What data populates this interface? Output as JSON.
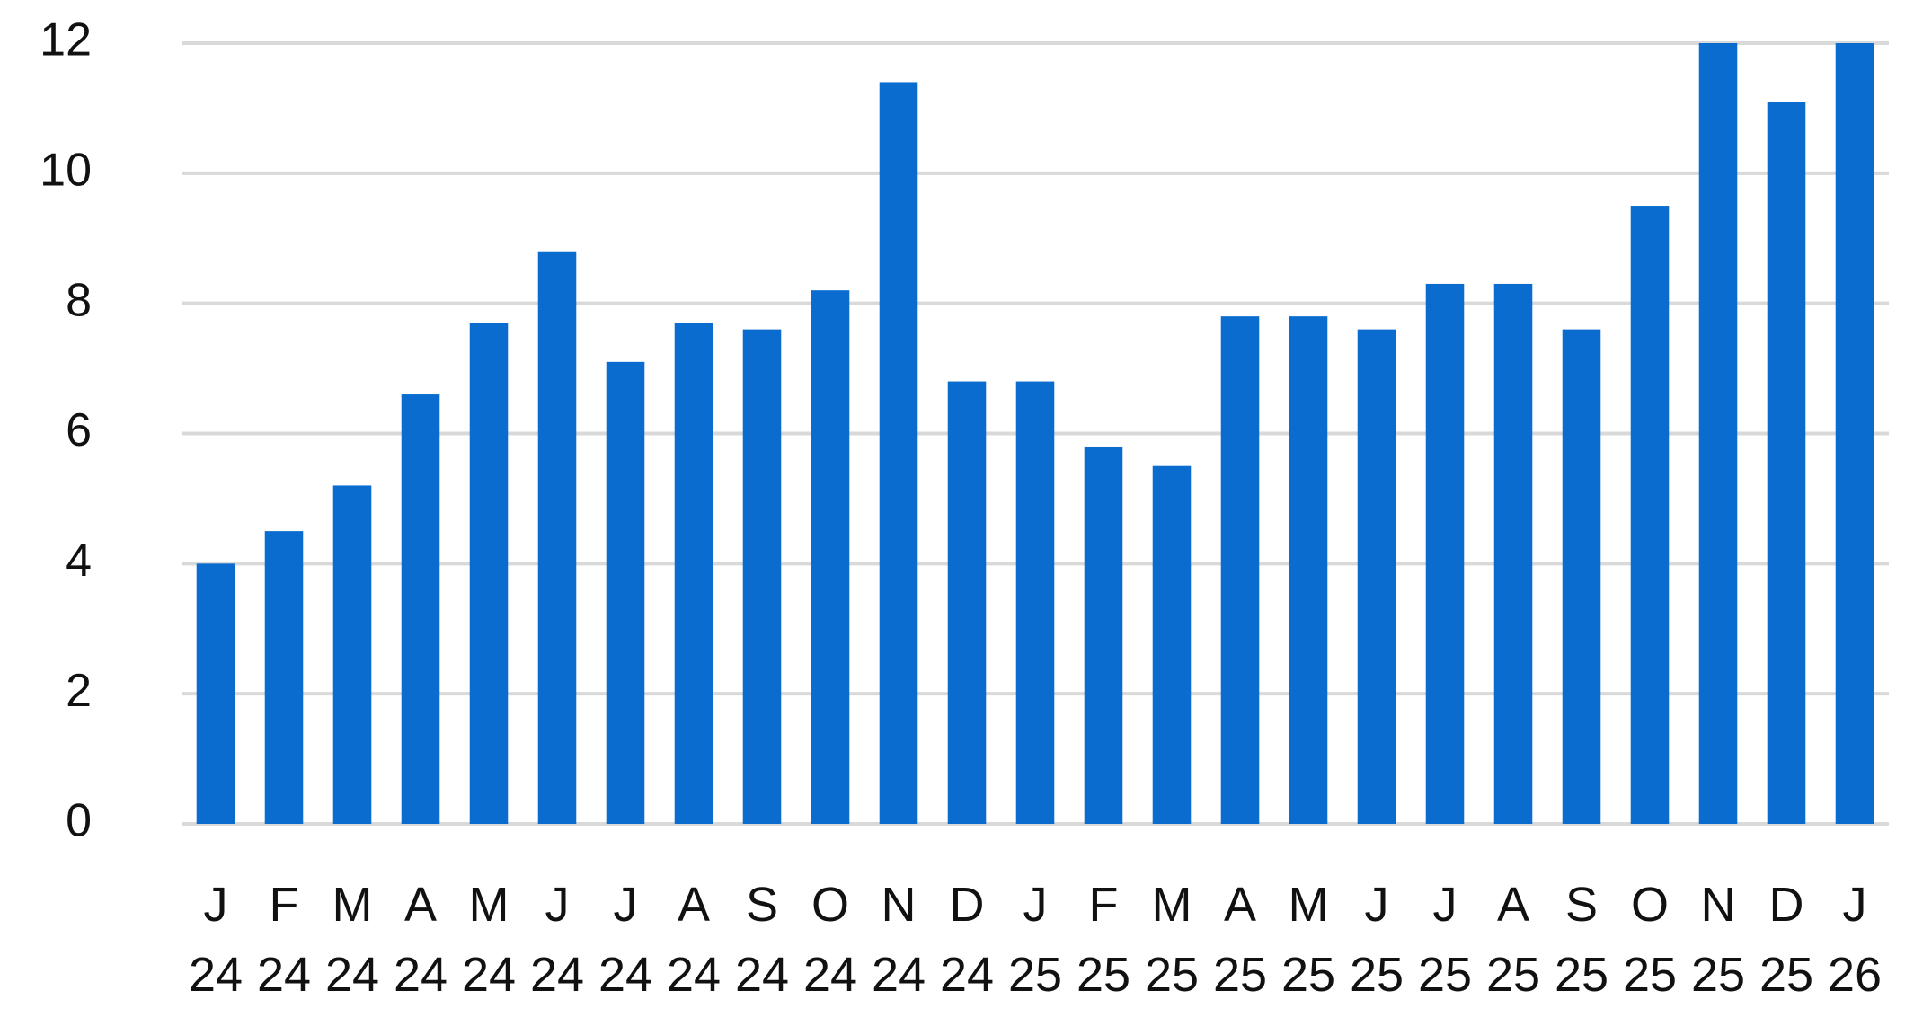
{
  "chart_data": {
    "type": "bar",
    "categories": [
      "J 24",
      "F 24",
      "M 24",
      "A 24",
      "M 24",
      "J 24",
      "J 24",
      "A 24",
      "S 24",
      "O 24",
      "N 24",
      "D 24",
      "J 25",
      "F 25",
      "M 25",
      "A 25",
      "M 25",
      "J 25",
      "J 25",
      "A 25",
      "S 25",
      "O 25",
      "N 25",
      "D 25",
      "J 26"
    ],
    "values": [
      4.0,
      4.5,
      5.2,
      6.6,
      7.7,
      8.8,
      7.1,
      7.7,
      7.6,
      8.2,
      11.4,
      6.8,
      6.8,
      5.8,
      5.5,
      7.8,
      7.8,
      7.6,
      8.3,
      8.3,
      7.6,
      9.5,
      12,
      11.1,
      12
    ],
    "color": "#0a6ccf",
    "ylim": [
      0,
      12
    ],
    "yticks": [
      0,
      2,
      4,
      6,
      8,
      10,
      12
    ],
    "grid": true
  }
}
